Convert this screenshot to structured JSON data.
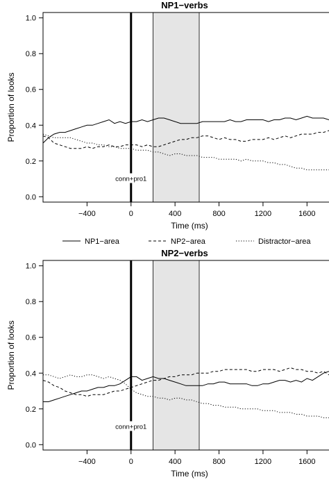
{
  "legend": {
    "items": [
      {
        "label": "NP1−area",
        "dash": "solid"
      },
      {
        "label": "NP2−area",
        "dash": "dashed"
      },
      {
        "label": "Distractor−area",
        "dash": "dotted"
      }
    ]
  },
  "chart_data": [
    {
      "type": "line",
      "title": "NP1−verbs",
      "xlabel": "Time (ms)",
      "ylabel": "Proportion of looks",
      "xlim": [
        -800,
        1800
      ],
      "ylim": [
        -0.03,
        1.03
      ],
      "xticks": [
        -400,
        0,
        400,
        800,
        1200,
        1600
      ],
      "yticks": [
        0.0,
        0.2,
        0.4,
        0.6,
        0.8,
        1.0
      ],
      "xtick_labels": [
        "−400",
        "0",
        "400",
        "800",
        "1200",
        "1600"
      ],
      "ytick_labels": [
        "0.0",
        "0.2",
        "0.4",
        "0.6",
        "0.8",
        "1.0"
      ],
      "vline": {
        "x": 0,
        "label": "conn+pro1"
      },
      "shaded_region": [
        200,
        620
      ],
      "grid": false,
      "legend_position": "bottom",
      "series": [
        {
          "name": "NP1−area",
          "dash": "solid",
          "x": [
            -800,
            -750,
            -700,
            -650,
            -600,
            -550,
            -500,
            -450,
            -400,
            -350,
            -300,
            -250,
            -200,
            -150,
            -100,
            -50,
            0,
            50,
            100,
            150,
            200,
            250,
            300,
            350,
            400,
            450,
            500,
            550,
            600,
            650,
            700,
            750,
            800,
            850,
            900,
            950,
            1000,
            1050,
            1100,
            1150,
            1200,
            1250,
            1300,
            1350,
            1400,
            1450,
            1500,
            1550,
            1600,
            1650,
            1700,
            1750,
            1800
          ],
          "y": [
            0.3,
            0.33,
            0.35,
            0.36,
            0.36,
            0.37,
            0.38,
            0.39,
            0.4,
            0.4,
            0.41,
            0.42,
            0.43,
            0.41,
            0.42,
            0.41,
            0.42,
            0.42,
            0.43,
            0.42,
            0.43,
            0.44,
            0.44,
            0.43,
            0.42,
            0.41,
            0.41,
            0.41,
            0.41,
            0.42,
            0.42,
            0.42,
            0.42,
            0.42,
            0.43,
            0.42,
            0.42,
            0.43,
            0.43,
            0.43,
            0.43,
            0.42,
            0.43,
            0.43,
            0.44,
            0.44,
            0.43,
            0.44,
            0.45,
            0.44,
            0.44,
            0.44,
            0.43
          ]
        },
        {
          "name": "NP2−area",
          "dash": "dashed",
          "x": [
            -800,
            -750,
            -700,
            -650,
            -600,
            -550,
            -500,
            -450,
            -400,
            -350,
            -300,
            -250,
            -200,
            -150,
            -100,
            -50,
            0,
            50,
            100,
            150,
            200,
            250,
            300,
            350,
            400,
            450,
            500,
            550,
            600,
            650,
            700,
            750,
            800,
            850,
            900,
            950,
            1000,
            1050,
            1100,
            1150,
            1200,
            1250,
            1300,
            1350,
            1400,
            1450,
            1500,
            1550,
            1600,
            1650,
            1700,
            1750,
            1800
          ],
          "y": [
            0.34,
            0.33,
            0.3,
            0.29,
            0.28,
            0.27,
            0.27,
            0.27,
            0.28,
            0.27,
            0.28,
            0.28,
            0.29,
            0.28,
            0.28,
            0.29,
            0.29,
            0.29,
            0.28,
            0.29,
            0.28,
            0.28,
            0.29,
            0.3,
            0.31,
            0.32,
            0.32,
            0.33,
            0.33,
            0.34,
            0.34,
            0.33,
            0.32,
            0.33,
            0.32,
            0.32,
            0.31,
            0.31,
            0.32,
            0.32,
            0.32,
            0.33,
            0.32,
            0.33,
            0.34,
            0.33,
            0.34,
            0.35,
            0.35,
            0.35,
            0.36,
            0.36,
            0.37
          ]
        },
        {
          "name": "Distractor−area",
          "dash": "dotted",
          "x": [
            -800,
            -750,
            -700,
            -650,
            -600,
            -550,
            -500,
            -450,
            -400,
            -350,
            -300,
            -250,
            -200,
            -150,
            -100,
            -50,
            0,
            50,
            100,
            150,
            200,
            250,
            300,
            350,
            400,
            450,
            500,
            550,
            600,
            650,
            700,
            750,
            800,
            850,
            900,
            950,
            1000,
            1050,
            1100,
            1150,
            1200,
            1250,
            1300,
            1350,
            1400,
            1450,
            1500,
            1550,
            1600,
            1650,
            1700,
            1750,
            1800
          ],
          "y": [
            0.35,
            0.34,
            0.33,
            0.33,
            0.33,
            0.33,
            0.32,
            0.31,
            0.3,
            0.3,
            0.29,
            0.29,
            0.28,
            0.28,
            0.27,
            0.27,
            0.27,
            0.26,
            0.26,
            0.26,
            0.25,
            0.25,
            0.24,
            0.23,
            0.24,
            0.24,
            0.23,
            0.23,
            0.23,
            0.22,
            0.22,
            0.22,
            0.21,
            0.21,
            0.21,
            0.21,
            0.2,
            0.21,
            0.2,
            0.2,
            0.2,
            0.19,
            0.19,
            0.18,
            0.18,
            0.17,
            0.16,
            0.16,
            0.15,
            0.15,
            0.15,
            0.15,
            0.15
          ]
        }
      ]
    },
    {
      "type": "line",
      "title": "NP2−verbs",
      "xlabel": "Time (ms)",
      "ylabel": "Proportion of looks",
      "xlim": [
        -800,
        1800
      ],
      "ylim": [
        -0.03,
        1.03
      ],
      "xticks": [
        -400,
        0,
        400,
        800,
        1200,
        1600
      ],
      "yticks": [
        0.0,
        0.2,
        0.4,
        0.6,
        0.8,
        1.0
      ],
      "xtick_labels": [
        "−400",
        "0",
        "400",
        "800",
        "1200",
        "1600"
      ],
      "ytick_labels": [
        "0.0",
        "0.2",
        "0.4",
        "0.6",
        "0.8",
        "1.0"
      ],
      "vline": {
        "x": 0,
        "label": "conn+pro1"
      },
      "shaded_region": [
        200,
        620
      ],
      "grid": false,
      "series": [
        {
          "name": "NP1−area",
          "dash": "solid",
          "x": [
            -800,
            -750,
            -700,
            -650,
            -600,
            -550,
            -500,
            -450,
            -400,
            -350,
            -300,
            -250,
            -200,
            -150,
            -100,
            -50,
            0,
            50,
            100,
            150,
            200,
            250,
            300,
            350,
            400,
            450,
            500,
            550,
            600,
            650,
            700,
            750,
            800,
            850,
            900,
            950,
            1000,
            1050,
            1100,
            1150,
            1200,
            1250,
            1300,
            1350,
            1400,
            1450,
            1500,
            1550,
            1600,
            1650,
            1700,
            1750,
            1800
          ],
          "y": [
            0.24,
            0.24,
            0.25,
            0.26,
            0.27,
            0.28,
            0.29,
            0.3,
            0.3,
            0.31,
            0.32,
            0.32,
            0.33,
            0.33,
            0.34,
            0.36,
            0.38,
            0.38,
            0.36,
            0.37,
            0.38,
            0.37,
            0.37,
            0.36,
            0.35,
            0.34,
            0.33,
            0.33,
            0.33,
            0.33,
            0.34,
            0.34,
            0.35,
            0.35,
            0.34,
            0.34,
            0.34,
            0.34,
            0.33,
            0.33,
            0.34,
            0.34,
            0.35,
            0.36,
            0.36,
            0.35,
            0.36,
            0.35,
            0.37,
            0.36,
            0.38,
            0.4,
            0.41
          ]
        },
        {
          "name": "NP2−area",
          "dash": "dashed",
          "x": [
            -800,
            -750,
            -700,
            -650,
            -600,
            -550,
            -500,
            -450,
            -400,
            -350,
            -300,
            -250,
            -200,
            -150,
            -100,
            -50,
            0,
            50,
            100,
            150,
            200,
            250,
            300,
            350,
            400,
            450,
            500,
            550,
            600,
            650,
            700,
            750,
            800,
            850,
            900,
            950,
            1000,
            1050,
            1100,
            1150,
            1200,
            1250,
            1300,
            1350,
            1400,
            1450,
            1500,
            1550,
            1600,
            1650,
            1700,
            1750,
            1800
          ],
          "y": [
            0.36,
            0.35,
            0.33,
            0.32,
            0.3,
            0.29,
            0.28,
            0.28,
            0.27,
            0.28,
            0.28,
            0.28,
            0.29,
            0.3,
            0.3,
            0.31,
            0.32,
            0.33,
            0.34,
            0.35,
            0.36,
            0.36,
            0.37,
            0.38,
            0.38,
            0.39,
            0.39,
            0.39,
            0.4,
            0.4,
            0.4,
            0.41,
            0.41,
            0.42,
            0.42,
            0.42,
            0.42,
            0.42,
            0.41,
            0.41,
            0.42,
            0.42,
            0.42,
            0.41,
            0.42,
            0.43,
            0.42,
            0.42,
            0.41,
            0.41,
            0.4,
            0.41,
            0.39
          ]
        },
        {
          "name": "Distractor−area",
          "dash": "dotted",
          "x": [
            -800,
            -750,
            -700,
            -650,
            -600,
            -550,
            -500,
            -450,
            -400,
            -350,
            -300,
            -250,
            -200,
            -150,
            -100,
            -50,
            0,
            50,
            100,
            150,
            200,
            250,
            300,
            350,
            400,
            450,
            500,
            550,
            600,
            650,
            700,
            750,
            800,
            850,
            900,
            950,
            1000,
            1050,
            1100,
            1150,
            1200,
            1250,
            1300,
            1350,
            1400,
            1450,
            1500,
            1550,
            1600,
            1650,
            1700,
            1750,
            1800
          ],
          "y": [
            0.39,
            0.39,
            0.38,
            0.37,
            0.38,
            0.39,
            0.38,
            0.38,
            0.39,
            0.39,
            0.38,
            0.37,
            0.38,
            0.37,
            0.36,
            0.34,
            0.31,
            0.29,
            0.28,
            0.27,
            0.27,
            0.26,
            0.26,
            0.25,
            0.26,
            0.26,
            0.25,
            0.25,
            0.24,
            0.23,
            0.23,
            0.22,
            0.22,
            0.21,
            0.21,
            0.21,
            0.2,
            0.2,
            0.2,
            0.2,
            0.19,
            0.19,
            0.19,
            0.18,
            0.18,
            0.18,
            0.17,
            0.17,
            0.16,
            0.16,
            0.16,
            0.15,
            0.15
          ]
        }
      ]
    }
  ]
}
